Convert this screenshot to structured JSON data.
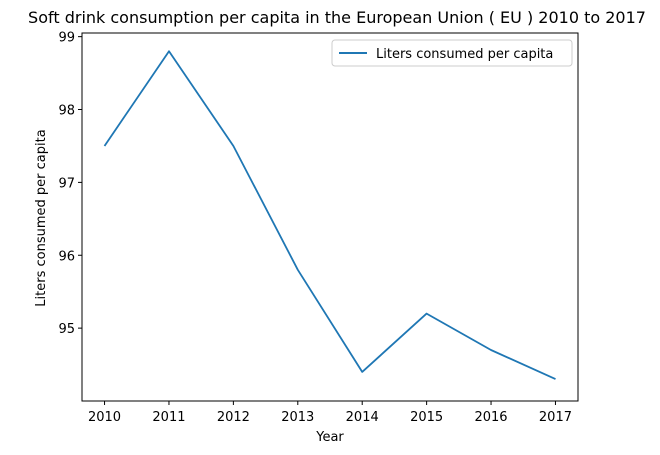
{
  "chart_data": {
    "type": "line",
    "title": "Soft drink consumption per capita in the European Union ( EU ) 2010 to 2017",
    "xlabel": "Year",
    "ylabel": "Liters consumed per capita",
    "x": [
      2010,
      2011,
      2012,
      2013,
      2014,
      2015,
      2016,
      2017
    ],
    "series": [
      {
        "name": "Liters consumed per capita",
        "color": "#1f77b4",
        "values": [
          97.5,
          98.8,
          97.5,
          95.8,
          94.4,
          95.2,
          94.7,
          94.3
        ]
      }
    ],
    "xticks": [
      "2010",
      "2011",
      "2012",
      "2013",
      "2014",
      "2015",
      "2016",
      "2017"
    ],
    "yticks": [
      95,
      96,
      97,
      98,
      99
    ],
    "ylim": [
      94.0,
      99.05
    ],
    "xlim": [
      2009.65,
      2017.35
    ],
    "grid": false,
    "legend_position": "top-right"
  }
}
